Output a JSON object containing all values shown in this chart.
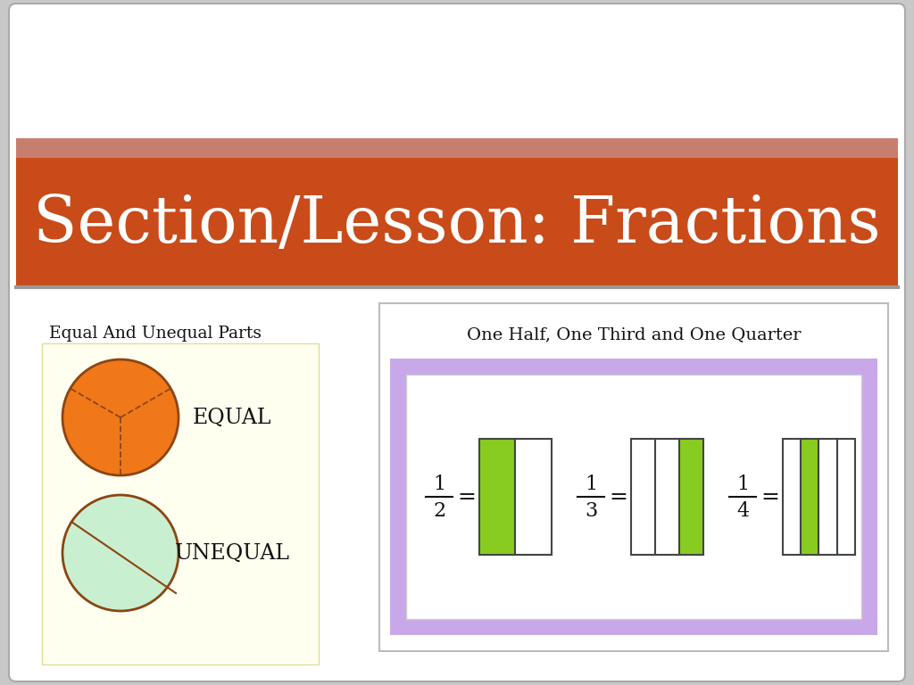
{
  "title": "Section/Lesson: Fractions",
  "title_bg_color": "#C94B1A",
  "title_top_strip_color": "#C87E6E",
  "title_text_color": "#FFFFFF",
  "slide_bg_color": "#C8C8C8",
  "content_bg_color": "#FFFFFF",
  "stripe_color": "#DDDDDD",
  "left_panel_title": "Equal And Unequal Parts",
  "left_panel_bg": "#FFFFF0",
  "equal_label": "EQUAL",
  "unequal_label": "UNEQUAL",
  "orange_color": "#F07818",
  "circle_border_color": "#8B4513",
  "mint_color": "#C8F0D0",
  "right_panel_title": "One Half, One Third and One Quarter",
  "right_panel_bg": "#C8A8E8",
  "fraction_box_bg": "#FFFFFF",
  "green_color": "#88CC22",
  "gray_line_color": "#999999",
  "fractions": [
    {
      "num": "1",
      "den": "2",
      "parts": 2,
      "filled_idx": 0
    },
    {
      "num": "1",
      "den": "3",
      "parts": 3,
      "filled_idx": 2
    },
    {
      "num": "1",
      "den": "4",
      "parts": 4,
      "filled_idx": 1
    }
  ]
}
